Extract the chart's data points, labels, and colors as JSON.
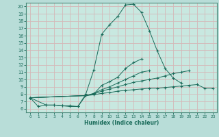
{
  "xlabel": "Humidex (Indice chaleur)",
  "bg_color": "#b8ddd8",
  "plot_bg_color": "#c8e8e0",
  "grid_color": "#d4b8b8",
  "line_color": "#1a6b5a",
  "spine_color": "#4a8a7a",
  "xlim": [
    -0.5,
    23.5
  ],
  "ylim": [
    5.5,
    20.5
  ],
  "xticks": [
    0,
    1,
    2,
    3,
    4,
    5,
    6,
    7,
    8,
    9,
    10,
    11,
    12,
    13,
    14,
    15,
    16,
    17,
    18,
    19,
    20,
    21,
    22,
    23
  ],
  "yticks": [
    6,
    7,
    8,
    9,
    10,
    11,
    12,
    13,
    14,
    15,
    16,
    17,
    18,
    19,
    20
  ],
  "lines": [
    [
      7.5,
      6.3,
      6.5,
      6.5,
      6.4,
      6.3,
      6.3,
      8.0,
      11.3,
      16.2,
      17.5,
      18.6,
      20.2,
      20.3,
      19.2,
      16.7,
      13.9,
      11.5,
      10.2,
      9.5,
      null,
      null,
      null,
      null
    ],
    [
      7.5,
      null,
      6.5,
      6.5,
      6.4,
      6.4,
      6.3,
      7.8,
      8.0,
      9.2,
      9.7,
      10.3,
      11.5,
      12.3,
      12.8,
      null,
      null,
      null,
      null,
      null,
      null,
      null,
      null,
      null
    ],
    [
      7.5,
      null,
      null,
      null,
      null,
      null,
      null,
      7.8,
      8.1,
      8.6,
      9.0,
      9.5,
      10.0,
      10.5,
      11.0,
      11.2,
      null,
      null,
      null,
      null,
      null,
      null,
      null,
      null
    ],
    [
      7.5,
      null,
      null,
      null,
      null,
      null,
      null,
      7.8,
      8.0,
      8.4,
      8.7,
      9.0,
      9.3,
      9.6,
      9.8,
      10.0,
      10.2,
      10.5,
      10.8,
      11.0,
      11.2,
      null,
      null,
      null
    ],
    [
      7.5,
      null,
      null,
      null,
      null,
      null,
      null,
      7.8,
      7.9,
      8.1,
      8.2,
      8.4,
      8.5,
      8.6,
      8.7,
      8.8,
      8.8,
      8.9,
      9.0,
      9.1,
      9.2,
      9.3,
      8.8,
      8.8
    ]
  ]
}
